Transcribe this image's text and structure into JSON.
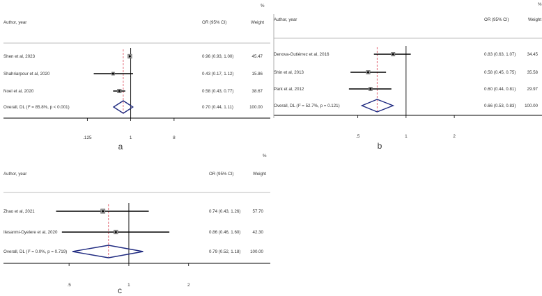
{
  "chart_data": [
    {
      "type": "forest",
      "panel_label": "a",
      "header": {
        "study": "Author, year",
        "effect": "OR (95% CI)",
        "weight": "Weight",
        "percent": "%"
      },
      "x_scale": "log",
      "xlim": [
        0.08,
        12
      ],
      "ticks": [
        0.125,
        1,
        8
      ],
      "tick_labels": [
        ".125",
        "1",
        "8"
      ],
      "null_line": 1,
      "pooled_line": 0.7,
      "studies": [
        {
          "label": "Shen et al, 2023",
          "or": 0.96,
          "lo": 0.93,
          "hi": 1.0,
          "ci_text": "0.96 (0.93, 1.00)",
          "weight": "45.47"
        },
        {
          "label": "Shahriarpour et al, 2020",
          "or": 0.43,
          "lo": 0.17,
          "hi": 1.12,
          "ci_text": "0.43 (0.17, 1.12)",
          "weight": "15.86"
        },
        {
          "label": "Noel et al, 2020",
          "or": 0.58,
          "lo": 0.43,
          "hi": 0.77,
          "ci_text": "0.58 (0.43, 0.77)",
          "weight": "38.67"
        }
      ],
      "overall": {
        "label": "Overall, DL (I² = 85.8%, p < 0.001)",
        "or": 0.7,
        "lo": 0.44,
        "hi": 1.11,
        "ci_text": "0.70 (0.44, 1.11)",
        "weight": "100.00"
      }
    },
    {
      "type": "forest",
      "panel_label": "b",
      "header": {
        "study": "Author, year",
        "effect": "OR (95% CI)",
        "weight": "Weight",
        "percent": "%"
      },
      "x_scale": "log",
      "xlim": [
        0.35,
        3.5
      ],
      "ticks": [
        0.5,
        1,
        2
      ],
      "tick_labels": [
        ".5",
        "1",
        "2"
      ],
      "null_line": 1,
      "pooled_line": 0.66,
      "studies": [
        {
          "label": "Denova-Gutiérrez  et al,  2016",
          "or": 0.83,
          "lo": 0.63,
          "hi": 1.07,
          "ci_text": "0.83 (0.63, 1.07)",
          "weight": "34.45"
        },
        {
          "label": "Shin et al, 2013",
          "or": 0.58,
          "lo": 0.45,
          "hi": 0.75,
          "ci_text": "0.58 (0.45, 0.75)",
          "weight": "35.58"
        },
        {
          "label": "Park et al, 2012",
          "or": 0.6,
          "lo": 0.44,
          "hi": 0.81,
          "ci_text": "0.60 (0.44, 0.81)",
          "weight": "29.97"
        }
      ],
      "overall": {
        "label": "Overall, DL (I² = 52.7%, p = 0.121)",
        "or": 0.66,
        "lo": 0.53,
        "hi": 0.83,
        "ci_text": "0.66 (0.53, 0.83)",
        "weight": "100.00"
      }
    },
    {
      "type": "forest",
      "panel_label": "c",
      "header": {
        "study": "Author, year",
        "effect": "OR (95% CI)",
        "weight": "Weight",
        "percent": "%"
      },
      "x_scale": "log",
      "xlim": [
        0.35,
        3.5
      ],
      "ticks": [
        0.5,
        1,
        2
      ],
      "tick_labels": [
        ".5",
        "1",
        "2"
      ],
      "null_line": 1,
      "pooled_line": 0.79,
      "studies": [
        {
          "label": "Zhao et al, 2021",
          "or": 0.74,
          "lo": 0.43,
          "hi": 1.26,
          "ci_text": "0.74 (0.43, 1.26)",
          "weight": "57.70"
        },
        {
          "label": "Ilesanmi-Oyelere et al, 2020",
          "or": 0.86,
          "lo": 0.46,
          "hi": 1.6,
          "ci_text": "0.86 (0.46, 1.60)",
          "weight": "42.30"
        }
      ],
      "overall": {
        "label": "Overall, DL (I² = 0.0%, p = 0.719)",
        "or": 0.79,
        "lo": 0.52,
        "hi": 1.18,
        "ci_text": "0.79 (0.52, 1.18)",
        "weight": "100.00"
      }
    }
  ],
  "colors": {
    "ci_line": "#000000",
    "diamond": "#1f2a80",
    "pooled_line": "#e05a6a",
    "axis": "#000000",
    "rule": "#bdbdbd",
    "text": "#333333",
    "square_fill": "#9a9a9a"
  }
}
